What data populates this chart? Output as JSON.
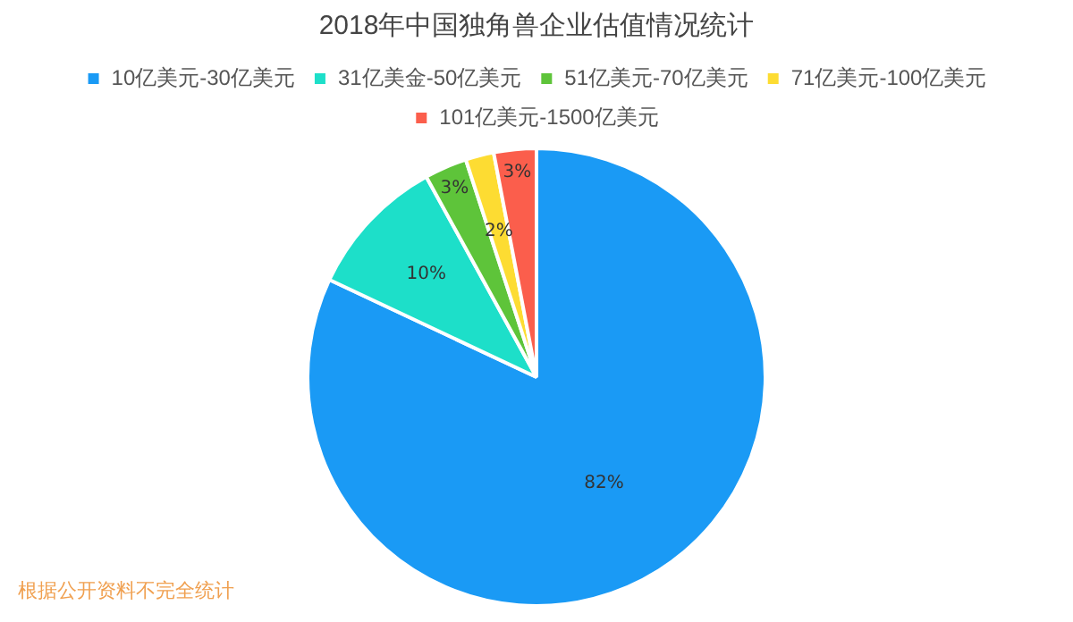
{
  "chart_data": {
    "type": "pie",
    "title": "2018年中国独角兽企业估值情况统计",
    "categories": [
      "10亿美元-30亿美元",
      "31亿美金-50亿美元",
      "51亿美元-70亿美元",
      "71亿美元-100亿美元",
      "101亿美元-1500亿美元"
    ],
    "values": [
      82,
      10,
      3,
      2,
      3
    ],
    "colors": [
      "#1a9af5",
      "#1ddfc9",
      "#5ec43a",
      "#fddc32",
      "#fb5e4c"
    ],
    "value_labels": [
      "82%",
      "10%",
      "3%",
      "2%",
      "3%"
    ],
    "legend": "top",
    "annotations": [
      "根据公开资料不完全统计"
    ]
  }
}
